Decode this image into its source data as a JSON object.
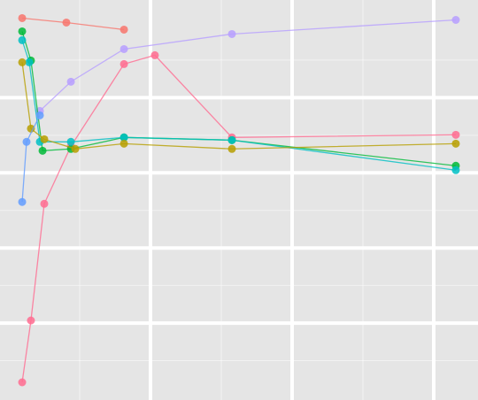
{
  "chart_data": {
    "type": "line",
    "xlim": [
      -0.0625,
      3.3125
    ],
    "ylim": [
      0,
      5.3
    ],
    "xticks": [
      1,
      2,
      3
    ],
    "yticks": [
      1,
      2,
      3,
      4
    ],
    "xminor": [
      0.5,
      1.5,
      2.5
    ],
    "yminor": [
      0.5,
      1.5,
      2.5,
      3.5,
      4.5
    ],
    "grid": true,
    "background": "#e5e5e5",
    "grid_color": "#ffffff",
    "series": [
      {
        "color": "#F8766D",
        "x": [
          0.094,
          0.406,
          0.813
        ],
        "values": [
          5.059,
          5.0,
          4.906
        ]
      },
      {
        "color": "#FF6C91",
        "x": [
          0.094,
          0.156,
          0.25,
          0.438,
          0.813,
          1.031,
          1.575,
          3.156
        ],
        "values": [
          0.212,
          1.035,
          2.588,
          3.353,
          4.447,
          4.565,
          3.471,
          3.506
        ]
      },
      {
        "color": "#B79FFF",
        "x": [
          0.219,
          0.438,
          0.813,
          1.575,
          3.156
        ],
        "values": [
          3.824,
          4.212,
          4.647,
          4.847,
          5.035
        ]
      },
      {
        "color": "#00BA38",
        "x": [
          0.094,
          0.156,
          0.238,
          0.438,
          0.813,
          1.575,
          3.156
        ],
        "values": [
          4.882,
          4.494,
          3.294,
          3.318,
          3.471,
          3.435,
          3.094
        ]
      },
      {
        "color": "#00BFC4",
        "x": [
          0.094,
          0.144,
          0.219,
          0.438,
          0.813,
          1.575,
          3.156
        ],
        "values": [
          4.765,
          4.471,
          3.412,
          3.412,
          3.471,
          3.435,
          3.035
        ]
      },
      {
        "color": "#B79F00",
        "x": [
          0.094,
          0.156,
          0.25,
          0.469,
          0.813,
          1.575,
          3.156
        ],
        "values": [
          4.471,
          3.588,
          3.447,
          3.318,
          3.388,
          3.318,
          3.388
        ]
      },
      {
        "color": "#619CFF",
        "x": [
          0.094,
          0.125,
          0.219
        ],
        "values": [
          2.612,
          3.412,
          3.765
        ]
      }
    ]
  }
}
